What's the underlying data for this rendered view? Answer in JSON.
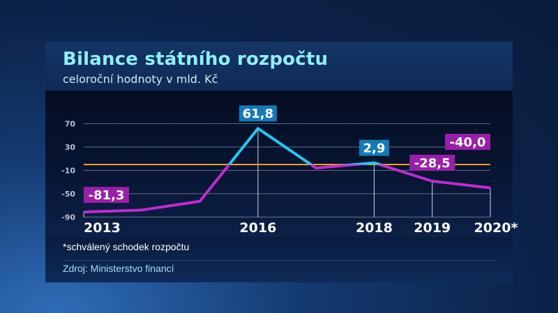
{
  "header": {
    "title": "Bilance státního rozpočtu",
    "subtitle": "celoroční hodnoty v mld. Kč"
  },
  "footnote": "*schválený schodek rozpočtu",
  "source": "Zdroj: Ministerstvo financí",
  "colors": {
    "positive": "#22c8f0",
    "negative": "#c22ad0",
    "zero_line": "#f0a020",
    "positive_label_bg": "#137bb8",
    "negative_label_bg": "#9a1fa8"
  },
  "chart_data": {
    "type": "line",
    "title": "Bilance státního rozpočtu",
    "subtitle": "celoroční hodnoty v mld. Kč",
    "x": [
      2013,
      2014,
      2015,
      2016,
      2017,
      2018,
      2019,
      2020
    ],
    "x_tick_labels": [
      {
        "x": 2013,
        "label": "2013"
      },
      {
        "x": 2016,
        "label": "2016"
      },
      {
        "x": 2018,
        "label": "2018"
      },
      {
        "x": 2019,
        "label": "2019"
      },
      {
        "x": 2020,
        "label": "2020*"
      }
    ],
    "values": [
      -81.3,
      -78,
      -63,
      61.8,
      -6,
      2.9,
      -28.5,
      -40.0
    ],
    "data_labels": [
      {
        "x": 2013,
        "label": "-81,3"
      },
      {
        "x": 2016,
        "label": "61,8"
      },
      {
        "x": 2018,
        "label": "2,9"
      },
      {
        "x": 2019,
        "label": "-28,5"
      },
      {
        "x": 2020,
        "label": "-40,0"
      }
    ],
    "y_ticks": [
      70,
      30,
      -10,
      -50,
      -90
    ],
    "ylim": [
      -90,
      70
    ],
    "grid": true
  }
}
